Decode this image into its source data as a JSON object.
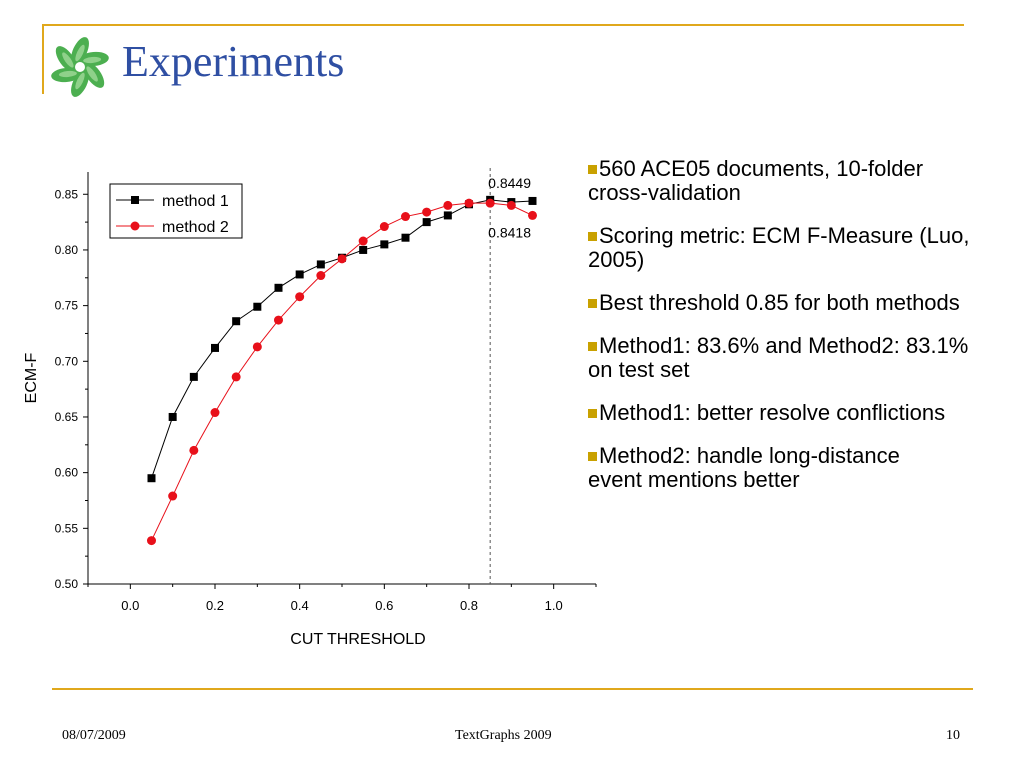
{
  "slide": {
    "title": "Experiments",
    "bullets": [
      {
        "lines": [
          "560 ACE05 documents, 10-folder",
          "cross-validation"
        ]
      },
      {
        "lines": [
          "Scoring metric: ECM F-Measure (Luo,",
          "2005)"
        ]
      },
      {
        "lines": [
          "Best threshold 0.85 for both methods"
        ]
      },
      {
        "lines": [
          "Method1: 83.6% and Method2: 83.1%",
          "on test set"
        ]
      },
      {
        "lines": [
          "Method1: better resolve conflictions"
        ]
      },
      {
        "lines": [
          "Method2: handle long-distance",
          "event mentions better"
        ]
      }
    ]
  },
  "footer": {
    "date": "08/07/2009",
    "center": "TextGraphs 2009",
    "page": "10"
  },
  "chart_data": {
    "type": "line",
    "title": "",
    "xlabel": "CUT THRESHOLD",
    "ylabel": "ECM-F",
    "xlim": [
      -0.1,
      1.1
    ],
    "ylim": [
      0.5,
      0.87
    ],
    "xticks": [
      "0.0",
      "0.2",
      "0.4",
      "0.6",
      "0.8",
      "1.0"
    ],
    "yticks": [
      "0.50",
      "0.55",
      "0.60",
      "0.65",
      "0.70",
      "0.75",
      "0.80",
      "0.85"
    ],
    "grid": false,
    "legend_position": "top-left",
    "x": [
      0.05,
      0.1,
      0.15,
      0.2,
      0.25,
      0.3,
      0.35,
      0.4,
      0.45,
      0.5,
      0.55,
      0.6,
      0.65,
      0.7,
      0.75,
      0.8,
      0.85,
      0.9,
      0.95
    ],
    "series": [
      {
        "name": "method 1",
        "color": "#000000",
        "marker": "square",
        "values": [
          0.595,
          0.65,
          0.686,
          0.712,
          0.736,
          0.749,
          0.766,
          0.778,
          0.787,
          0.793,
          0.8,
          0.805,
          0.811,
          0.825,
          0.831,
          0.841,
          0.845,
          0.843,
          0.844
        ]
      },
      {
        "name": "method 2",
        "color": "#e8101a",
        "marker": "circle",
        "values": [
          0.539,
          0.579,
          0.62,
          0.654,
          0.686,
          0.713,
          0.737,
          0.758,
          0.777,
          0.792,
          0.808,
          0.821,
          0.83,
          0.834,
          0.84,
          0.842,
          0.842,
          0.84,
          0.831
        ]
      }
    ],
    "reference_line": {
      "x": 0.85,
      "style": "dashed"
    },
    "annotations": [
      {
        "text": "0.8449",
        "x": 0.85,
        "y": 0.8449,
        "position": "above"
      },
      {
        "text": "0.8418",
        "x": 0.85,
        "y": 0.8418,
        "position": "below"
      }
    ]
  }
}
